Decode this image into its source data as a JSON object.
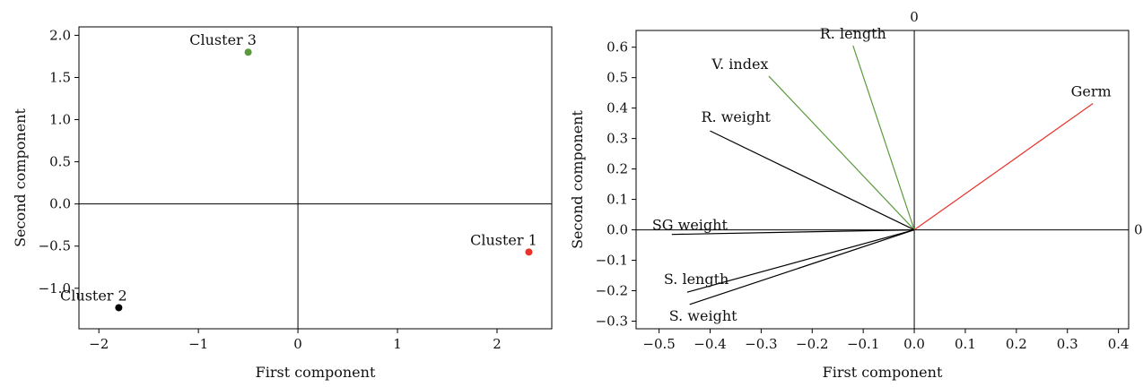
{
  "chart_data": [
    {
      "type": "scatter",
      "xlabel": "First component",
      "ylabel": "Second component",
      "xlim": [
        -2.2,
        2.55
      ],
      "ylim": [
        -1.48,
        2.1
      ],
      "xticks": [
        -2,
        -1,
        0,
        1,
        2
      ],
      "xtick_labels": [
        "−2",
        "−1",
        "0",
        "1",
        "2"
      ],
      "yticks": [
        -1.0,
        -0.5,
        0.0,
        0.5,
        1.0,
        1.5,
        2.0
      ],
      "ytick_labels": [
        "−1.0",
        "−0.5",
        "0.0",
        "0.5",
        "1.0",
        "1.5",
        "2.0"
      ],
      "reference_lines": {
        "x": 0,
        "y": 0
      },
      "grid": false,
      "points": [
        {
          "label": "Cluster 1",
          "x": 2.32,
          "y": -0.57,
          "color": "#e8322b"
        },
        {
          "label": "Cluster 2",
          "x": -1.8,
          "y": -1.23,
          "color": "#000000"
        },
        {
          "label": "Cluster 3",
          "x": -0.5,
          "y": 1.8,
          "color": "#5a9a3c"
        }
      ]
    },
    {
      "type": "line",
      "xlabel": "First component",
      "ylabel": "Second component",
      "xlim": [
        -0.545,
        0.42
      ],
      "ylim": [
        -0.325,
        0.655
      ],
      "xticks": [
        -0.5,
        -0.4,
        -0.3,
        -0.2,
        -0.1,
        0.0,
        0.1,
        0.2,
        0.3,
        0.4
      ],
      "xtick_labels": [
        "−0.5",
        "−0.4",
        "−0.3",
        "−0.2",
        "−0.1",
        "0.0",
        "0.1",
        "0.2",
        "0.3",
        "0.4"
      ],
      "yticks": [
        -0.3,
        -0.2,
        -0.1,
        0.0,
        0.1,
        0.2,
        0.3,
        0.4,
        0.5,
        0.6
      ],
      "ytick_labels": [
        "−0.3",
        "−0.2",
        "−0.1",
        "0.0",
        "0.1",
        "0.2",
        "0.3",
        "0.4",
        "0.5",
        "0.6"
      ],
      "reference_lines": {
        "x": 0,
        "y": 0
      },
      "reference_labels": {
        "top": "0",
        "right": "0"
      },
      "grid": false,
      "vectors": [
        {
          "label": "R. length",
          "x": -0.12,
          "y": 0.605,
          "color": "#5a9a3c"
        },
        {
          "label": "V. index",
          "x": -0.285,
          "y": 0.505,
          "color": "#5a9a3c"
        },
        {
          "label": "Germ",
          "x": 0.35,
          "y": 0.415,
          "color": "#e8322b"
        },
        {
          "label": "R. weight",
          "x": -0.4,
          "y": 0.325,
          "color": "#000000"
        },
        {
          "label": "SG weight",
          "x": -0.475,
          "y": -0.015,
          "color": "#000000"
        },
        {
          "label": "S. length",
          "x": -0.445,
          "y": -0.205,
          "color": "#000000"
        },
        {
          "label": "S. weight",
          "x": -0.44,
          "y": -0.245,
          "color": "#000000"
        }
      ]
    }
  ]
}
